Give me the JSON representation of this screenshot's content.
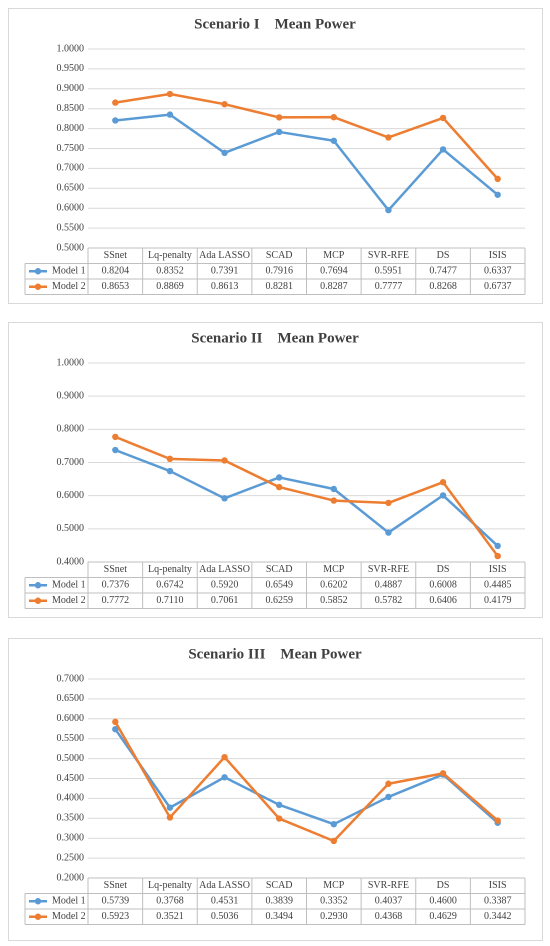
{
  "chart_data": [
    {
      "type": "line",
      "title": "Scenario I    Mean Power",
      "categories": [
        "SSnet",
        "Lq-penalty",
        "Ada LASSO",
        "SCAD",
        "MCP",
        "SVR-RFE",
        "DS",
        "ISIS"
      ],
      "series": [
        {
          "name": "Model 1",
          "color": "#5b9bd5",
          "values": [
            0.8204,
            0.8352,
            0.7391,
            0.7916,
            0.7694,
            0.5951,
            0.7477,
            0.6337
          ],
          "value_labels": [
            "0.8204",
            "0.8352",
            "0.7391",
            "0.7916",
            "0.7694",
            "0.5951",
            "0.7477",
            "0.6337"
          ]
        },
        {
          "name": "Model 2",
          "color": "#ed7d31",
          "values": [
            0.8653,
            0.8869,
            0.8613,
            0.8281,
            0.8287,
            0.7777,
            0.8268,
            0.6737
          ],
          "value_labels": [
            "0.8653",
            "0.8869",
            "0.8613",
            "0.8281",
            "0.8287",
            "0.7777",
            "0.8268",
            "0.6737"
          ]
        }
      ],
      "ylim": [
        0.5,
        1.0
      ],
      "yticks": [
        {
          "value": 0.5,
          "label": "0.5000"
        },
        {
          "value": 0.55,
          "label": "0.5500"
        },
        {
          "value": 0.6,
          "label": "0.6000"
        },
        {
          "value": 0.65,
          "label": "0.6500"
        },
        {
          "value": 0.7,
          "label": "0.7000"
        },
        {
          "value": 0.75,
          "label": "0.7500"
        },
        {
          "value": 0.8,
          "label": "0.8000"
        },
        {
          "value": 0.85,
          "label": "0.8500"
        },
        {
          "value": 0.9,
          "label": "0.9000"
        },
        {
          "value": 0.95,
          "label": "0.9500"
        },
        {
          "value": 1.0,
          "label": "1.0000"
        }
      ],
      "grid": true
    },
    {
      "type": "line",
      "title": "Scenario II    Mean Power",
      "categories": [
        "SSnet",
        "Lq-penalty",
        "Ada LASSO",
        "SCAD",
        "MCP",
        "SVR-RFE",
        "DS",
        "ISIS"
      ],
      "series": [
        {
          "name": "Model 1",
          "color": "#5b9bd5",
          "values": [
            0.7376,
            0.6742,
            0.592,
            0.6549,
            0.6202,
            0.4887,
            0.6008,
            0.4485
          ],
          "value_labels": [
            "0.7376",
            "0.6742",
            "0.5920",
            "0.6549",
            "0.6202",
            "0.4887",
            "0.6008",
            "0.4485"
          ]
        },
        {
          "name": "Model 2",
          "color": "#ed7d31",
          "values": [
            0.7772,
            0.711,
            0.7061,
            0.6259,
            0.5852,
            0.5782,
            0.6406,
            0.4179
          ],
          "value_labels": [
            "0.7772",
            "0.7110",
            "0.7061",
            "0.6259",
            "0.5852",
            "0.5782",
            "0.6406",
            "0.4179"
          ]
        }
      ],
      "ylim": [
        0.4,
        1.0
      ],
      "yticks": [
        {
          "value": 0.4,
          "label": "0.4000"
        },
        {
          "value": 0.5,
          "label": "0.5000"
        },
        {
          "value": 0.6,
          "label": "0.6000"
        },
        {
          "value": 0.7,
          "label": "0.7000"
        },
        {
          "value": 0.8,
          "label": "0.8000"
        },
        {
          "value": 0.9,
          "label": "0.9000"
        },
        {
          "value": 1.0,
          "label": "1.0000"
        }
      ],
      "grid": true
    },
    {
      "type": "line",
      "title": "Scenario III    Mean Power",
      "categories": [
        "SSnet",
        "Lq-penalty",
        "Ada LASSO",
        "SCAD",
        "MCP",
        "SVR-RFE",
        "DS",
        "ISIS"
      ],
      "series": [
        {
          "name": "Model 1",
          "color": "#5b9bd5",
          "values": [
            0.5739,
            0.3768,
            0.4531,
            0.3839,
            0.3352,
            0.4037,
            0.46,
            0.3387
          ],
          "value_labels": [
            "0.5739",
            "0.3768",
            "0.4531",
            "0.3839",
            "0.3352",
            "0.4037",
            "0.4600",
            "0.3387"
          ]
        },
        {
          "name": "Model 2",
          "color": "#ed7d31",
          "values": [
            0.5923,
            0.3521,
            0.5036,
            0.3494,
            0.293,
            0.4368,
            0.4629,
            0.3442
          ],
          "value_labels": [
            "0.5923",
            "0.3521",
            "0.5036",
            "0.3494",
            "0.2930",
            "0.4368",
            "0.4629",
            "0.3442"
          ]
        }
      ],
      "ylim": [
        0.2,
        0.7
      ],
      "yticks": [
        {
          "value": 0.2,
          "label": "0.2000"
        },
        {
          "value": 0.25,
          "label": "0.2500"
        },
        {
          "value": 0.3,
          "label": "0.3000"
        },
        {
          "value": 0.35,
          "label": "0.3500"
        },
        {
          "value": 0.4,
          "label": "0.4000"
        },
        {
          "value": 0.45,
          "label": "0.4500"
        },
        {
          "value": 0.5,
          "label": "0.5000"
        },
        {
          "value": 0.55,
          "label": "0.5500"
        },
        {
          "value": 0.6,
          "label": "0.6000"
        },
        {
          "value": 0.65,
          "label": "0.6500"
        },
        {
          "value": 0.7,
          "label": "0.7000"
        }
      ],
      "grid": true
    }
  ]
}
